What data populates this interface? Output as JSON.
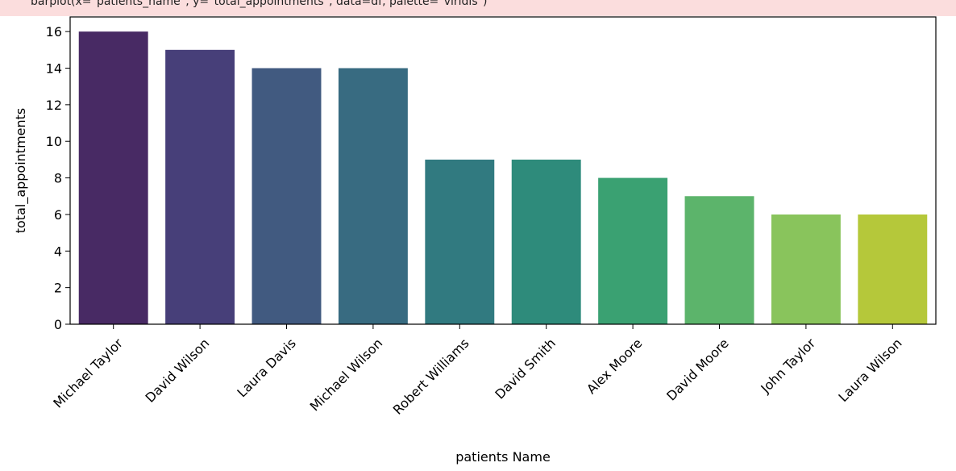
{
  "warning": {
    "text": "barplot(x=\"patients_name\", y=\"total_appointments\", data=df, palette=\"viridis\")"
  },
  "chart_data": {
    "type": "bar",
    "title": "",
    "xlabel": "patients Name",
    "ylabel": "total_appointments",
    "ylim": [
      0,
      16.8
    ],
    "yticks": [
      0,
      2,
      4,
      6,
      8,
      10,
      12,
      14,
      16
    ],
    "grid": false,
    "categories": [
      "Michael Taylor",
      "David Wilson",
      "Laura Davis",
      "Michael Wilson",
      "Robert Williams",
      "David Smith",
      "Alex Moore",
      "David Moore",
      "John Taylor",
      "Laura Wilson"
    ],
    "values": [
      16,
      15,
      14,
      14,
      9,
      9,
      8,
      7,
      6,
      6
    ],
    "colors": [
      "#482a64",
      "#473f79",
      "#415a80",
      "#386b81",
      "#317a80",
      "#2e8b7b",
      "#3aa172",
      "#5cb46b",
      "#89c45c",
      "#b5c83a"
    ]
  }
}
